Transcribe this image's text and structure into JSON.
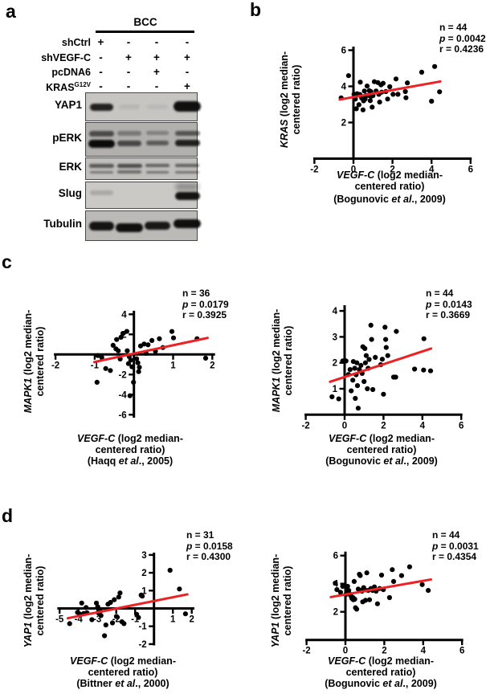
{
  "panels": {
    "a": "a",
    "b": "b",
    "c": "c",
    "d": "d"
  },
  "colors": {
    "trend": "#ed2024",
    "point": "#000000",
    "axis": "#000000"
  },
  "blot": {
    "header": "BCC",
    "conditions": [
      {
        "label": "shCtrl",
        "sup": "",
        "signs": [
          "+",
          "-",
          "-",
          "-"
        ]
      },
      {
        "label": "shVEGF-C",
        "sup": "",
        "signs": [
          "-",
          "+",
          "+",
          "+"
        ]
      },
      {
        "label": "pcDNA6",
        "sup": "",
        "signs": [
          "-",
          "-",
          "+",
          "-"
        ]
      },
      {
        "label": "KRAS",
        "sup": "G12V",
        "signs": [
          "-",
          "-",
          "-",
          "+"
        ]
      }
    ],
    "rows": [
      {
        "label": "YAP1",
        "bg": "#c7c5c2",
        "bands": [
          [
            [
              12.5,
              9,
              0.95,
              0.85
            ]
          ],
          [
            [
              14,
              6,
              0.85,
              0.07
            ]
          ],
          [
            [
              14,
              6,
              0.85,
              0.06
            ]
          ],
          [
            [
              9.5,
              13,
              1.08,
              0.95
            ]
          ]
        ]
      },
      {
        "label": "pERK",
        "bg": "#b2b0ad",
        "bands": [
          [
            [
              10,
              6.5,
              1,
              0.6
            ],
            [
              21,
              9.5,
              1.05,
              0.97
            ]
          ],
          [
            [
              10,
              5.5,
              0.95,
              0.33
            ],
            [
              22,
              7,
              0.95,
              0.62
            ]
          ],
          [
            [
              10,
              5,
              0.9,
              0.28
            ],
            [
              22,
              6,
              0.9,
              0.5
            ]
          ],
          [
            [
              10,
              6,
              1,
              0.55
            ],
            [
              21,
              8,
              1,
              0.85
            ]
          ]
        ]
      },
      {
        "label": "ERK",
        "bg": "#c1bfbc",
        "bands": [
          [
            [
              7,
              4.5,
              1,
              0.55
            ],
            [
              15.5,
              3.5,
              0.95,
              0.4
            ]
          ],
          [
            [
              6.5,
              5,
              1,
              0.62
            ],
            [
              15,
              4,
              0.95,
              0.45
            ]
          ],
          [
            [
              7,
              4,
              0.95,
              0.5
            ],
            [
              15.5,
              3.5,
              0.9,
              0.42
            ]
          ],
          [
            [
              7,
              4,
              0.95,
              0.5
            ],
            [
              15.5,
              3.5,
              0.95,
              0.42
            ]
          ]
        ]
      },
      {
        "label": "Slug",
        "bg": "#cbc9c6",
        "bands": [
          [
            [
              9.5,
              6,
              0.95,
              0.16
            ]
          ],
          [],
          [],
          [
            [
              12,
              10,
              1,
              0.93
            ],
            [
              1,
              9,
              0.95,
              0.3
            ]
          ]
        ]
      },
      {
        "label": "Tubulin",
        "bg": "#bcbab7",
        "bands": [
          [
            [
              13,
              11,
              1,
              0.92
            ]
          ],
          [
            [
              14.5,
              11,
              1.1,
              0.95
            ]
          ],
          [
            [
              12.5,
              10,
              1.05,
              0.9
            ]
          ],
          [
            [
              9.5,
              11.5,
              1.1,
              0.95
            ]
          ]
        ]
      }
    ]
  },
  "chart_data": [
    {
      "id": "b",
      "type": "scatter",
      "stats": {
        "n": "n = 44",
        "p_label": "p",
        "p_value": " = 0.0042",
        "r": "r = 0.4236"
      },
      "ylabel_gene": "KRAS",
      "ylabel_rest": " (log2 median-",
      "ylabel_line2": "centered ratio)",
      "xlabel_gene": "VEGF-C",
      "xlabel_rest": " (log2 median-",
      "xlabel_line2": "centered ratio)",
      "citation_pre": "(Bogunovic ",
      "citation_italic": "et al",
      "citation_post": "., 2009)",
      "xlim": [
        -2,
        6
      ],
      "ylim": [
        0,
        6
      ],
      "xticks": [
        -2,
        0,
        2,
        4,
        6
      ],
      "yticks": [
        2,
        4,
        6
      ],
      "trend": [
        [
          -0.7,
          3.27
        ],
        [
          4.45,
          4.27
        ]
      ],
      "points": [
        [
          -0.63,
          3.36
        ],
        [
          -0.25,
          4.59
        ],
        [
          0.03,
          3.56
        ],
        [
          0.1,
          3.3
        ],
        [
          0.15,
          2.76
        ],
        [
          0.19,
          3.59
        ],
        [
          0.28,
          2.98
        ],
        [
          0.33,
          3.55
        ],
        [
          0.35,
          4.23
        ],
        [
          0.42,
          3.36
        ],
        [
          0.49,
          2.7
        ],
        [
          0.52,
          3.2
        ],
        [
          0.56,
          3.74
        ],
        [
          0.6,
          3.3
        ],
        [
          0.64,
          3.49
        ],
        [
          0.7,
          4.02
        ],
        [
          0.77,
          3.5
        ],
        [
          0.81,
          3.76
        ],
        [
          0.86,
          3.21
        ],
        [
          0.89,
          3.71
        ],
        [
          0.9,
          3.45
        ],
        [
          0.96,
          2.85
        ],
        [
          1.0,
          3.49
        ],
        [
          1.07,
          4.26
        ],
        [
          1.16,
          3.74
        ],
        [
          1.25,
          4.21
        ],
        [
          1.3,
          3.56
        ],
        [
          1.34,
          3.13
        ],
        [
          1.41,
          4.08
        ],
        [
          1.45,
          3.68
        ],
        [
          1.52,
          4.17
        ],
        [
          1.66,
          3.71
        ],
        [
          1.75,
          3.3
        ],
        [
          1.86,
          3.98
        ],
        [
          2.03,
          3.56
        ],
        [
          2.18,
          4.41
        ],
        [
          2.28,
          3.56
        ],
        [
          2.66,
          3.71
        ],
        [
          2.69,
          3.37
        ],
        [
          2.76,
          4.19
        ],
        [
          3.5,
          4.78
        ],
        [
          4.0,
          3.18
        ],
        [
          4.16,
          5.1
        ],
        [
          4.41,
          3.7
        ]
      ]
    },
    {
      "id": "c_left",
      "type": "scatter",
      "stats": {
        "n": "n = 36",
        "p_label": "p",
        "p_value": " = 0.0179",
        "r": "r = 0.3925"
      },
      "ylabel_gene": "MAPK1",
      "ylabel_rest": " (log2 median-",
      "ylabel_line2": "centered ratio)",
      "xlabel_gene": "VEGF-C",
      "xlabel_rest": " (log2 median-",
      "xlabel_line2": "centered ratio)",
      "citation_pre": "(Haqq ",
      "citation_italic": "et al",
      "citation_post": "., 2005)",
      "xlim": [
        -2,
        2
      ],
      "ylim": [
        -6,
        4
      ],
      "xticks": [
        -2,
        -1,
        1,
        2
      ],
      "yticks": [
        -6,
        -4,
        -2,
        2,
        4
      ],
      "trend": [
        [
          -1.01,
          -0.75
        ],
        [
          1.88,
          1.65
        ]
      ],
      "points": [
        [
          -0.94,
          -2.77
        ],
        [
          -0.92,
          -0.11
        ],
        [
          -0.82,
          -0.29
        ],
        [
          -0.72,
          -1.4
        ],
        [
          -0.6,
          -1.6
        ],
        [
          -0.53,
          0.91
        ],
        [
          -0.46,
          0.56
        ],
        [
          -0.44,
          1.49
        ],
        [
          -0.4,
          0.37
        ],
        [
          -0.35,
          -0.45
        ],
        [
          -0.33,
          1.71
        ],
        [
          -0.28,
          2.1
        ],
        [
          -0.18,
          2.3
        ],
        [
          -0.17,
          0.37
        ],
        [
          -0.14,
          -0.91
        ],
        [
          -0.12,
          -0.21
        ],
        [
          -0.1,
          -4.11
        ],
        [
          -0.08,
          -0.56
        ],
        [
          -0.05,
          -1.23
        ],
        [
          -0.01,
          -2.77
        ],
        [
          0.07,
          -0.43
        ],
        [
          0.1,
          -0.83
        ],
        [
          0.12,
          -1.71
        ],
        [
          0.14,
          -1.28
        ],
        [
          0.17,
          0.85
        ],
        [
          0.26,
          1.04
        ],
        [
          0.31,
          0.11
        ],
        [
          0.36,
          0.96
        ],
        [
          0.46,
          1.39
        ],
        [
          0.55,
          0.32
        ],
        [
          0.65,
          1.57
        ],
        [
          0.74,
          0.69
        ],
        [
          0.97,
          2.29
        ],
        [
          1.01,
          1.65
        ],
        [
          1.61,
          1.57
        ],
        [
          1.83,
          -0.37
        ]
      ]
    },
    {
      "id": "c_right",
      "type": "scatter",
      "stats": {
        "n": "n = 44",
        "p_label": "p",
        "p_value": " = 0.0143",
        "r": "r = 0.3669"
      },
      "ylabel_gene": "MAPK1",
      "ylabel_rest": " (log2 median-",
      "ylabel_line2": "centered ratio)",
      "xlabel_gene": "VEGF-C",
      "xlabel_rest": " (log2 median-",
      "xlabel_line2": "centered ratio)",
      "citation_pre": "(Bogunovic ",
      "citation_italic": "et al",
      "citation_post": "., 2009)",
      "xlim": [
        -2,
        6
      ],
      "ylim": [
        0,
        4
      ],
      "xticks": [
        -2,
        0,
        2,
        4,
        6
      ],
      "yticks": [
        1,
        2,
        3,
        4
      ],
      "trend": [
        [
          -0.75,
          1.27
        ],
        [
          4.45,
          2.55
        ]
      ],
      "points": [
        [
          -0.65,
          0.69
        ],
        [
          -0.3,
          0.61
        ],
        [
          -0.1,
          2.07
        ],
        [
          0.07,
          2.07
        ],
        [
          0.2,
          1.55
        ],
        [
          0.28,
          1.74
        ],
        [
          0.34,
          0.92
        ],
        [
          0.42,
          1.33
        ],
        [
          0.45,
          2.05
        ],
        [
          0.52,
          1.79
        ],
        [
          0.55,
          0.63
        ],
        [
          0.59,
          1.54
        ],
        [
          0.63,
          2.0
        ],
        [
          0.66,
          1.12
        ],
        [
          0.7,
          0.25
        ],
        [
          0.76,
          1.74
        ],
        [
          0.84,
          1.9
        ],
        [
          0.9,
          1.59
        ],
        [
          0.94,
          2.62
        ],
        [
          1.0,
          1.28
        ],
        [
          1.04,
          2.55
        ],
        [
          1.07,
          2.0
        ],
        [
          1.11,
          2.28
        ],
        [
          1.17,
          1.0
        ],
        [
          1.21,
          1.79
        ],
        [
          1.26,
          2.13
        ],
        [
          1.35,
          3.45
        ],
        [
          1.39,
          2.9
        ],
        [
          1.45,
          0.97
        ],
        [
          1.58,
          2.21
        ],
        [
          1.86,
          1.93
        ],
        [
          1.94,
          2.14
        ],
        [
          2.0,
          0.79
        ],
        [
          2.08,
          3.37
        ],
        [
          2.11,
          2.9
        ],
        [
          2.14,
          2.59
        ],
        [
          2.22,
          2.28
        ],
        [
          2.52,
          1.45
        ],
        [
          2.63,
          1.45
        ],
        [
          2.66,
          3.21
        ],
        [
          3.6,
          1.76
        ],
        [
          4.06,
          1.72
        ],
        [
          4.08,
          2.93
        ],
        [
          4.42,
          1.69
        ]
      ]
    },
    {
      "id": "d_left",
      "type": "scatter",
      "stats": {
        "n": "n = 31",
        "p_label": "p",
        "p_value": " = 0.0158",
        "r": "r = 0.4300"
      },
      "ylabel_gene": "YAP1",
      "ylabel_rest": " (log2 median-",
      "ylabel_line2": "centered ratio)",
      "xlabel_gene": "VEGF-C",
      "xlabel_rest": " (log2 median-",
      "xlabel_line2": "centered ratio)",
      "citation_pre": "(Bittner ",
      "citation_italic": "et al",
      "citation_post": "., 2000)",
      "xlim": [
        -5,
        2
      ],
      "ylim": [
        -2,
        3
      ],
      "xticks": [
        -5,
        -4,
        -3,
        -2,
        -1,
        1,
        2
      ],
      "yticks": [
        -2,
        -1,
        1,
        2,
        3
      ],
      "trend": [
        [
          -4.57,
          -0.55
        ],
        [
          1.77,
          0.79
        ]
      ],
      "points": [
        [
          -4.47,
          -0.85
        ],
        [
          -4.05,
          -0.22
        ],
        [
          -3.95,
          -0.3
        ],
        [
          -3.83,
          0.3
        ],
        [
          -3.72,
          -0.28
        ],
        [
          -3.6,
          0.05
        ],
        [
          -3.55,
          -0.25
        ],
        [
          -3.29,
          -0.63
        ],
        [
          -3.05,
          0.3
        ],
        [
          -2.98,
          0.09
        ],
        [
          -2.95,
          -0.25
        ],
        [
          -2.84,
          -0.15
        ],
        [
          -2.81,
          -0.4
        ],
        [
          -2.62,
          -1.53
        ],
        [
          -2.55,
          -0.93
        ],
        [
          -2.44,
          0.24
        ],
        [
          -2.3,
          0.34
        ],
        [
          -2.2,
          -0.81
        ],
        [
          -2.1,
          0.49
        ],
        [
          -1.99,
          -0.45
        ],
        [
          -1.87,
          0.64
        ],
        [
          -1.8,
          0.87
        ],
        [
          -1.7,
          -0.75
        ],
        [
          -1.59,
          -0.85
        ],
        [
          -0.92,
          -0.33
        ],
        [
          -0.82,
          -0.51
        ],
        [
          -0.68,
          0.75
        ],
        [
          -0.62,
          0.69
        ],
        [
          0.85,
          2.14
        ],
        [
          1.35,
          1.09
        ],
        [
          1.67,
          -0.3
        ]
      ]
    },
    {
      "id": "d_right",
      "type": "scatter",
      "stats": {
        "n": "n = 44",
        "p_label": "p",
        "p_value": " = 0.0031",
        "r": "r = 0.4354"
      },
      "ylabel_gene": "YAP1",
      "ylabel_rest": " (log2 median-",
      "ylabel_line2": "centered ratio)",
      "xlabel_gene": "VEGF-C",
      "xlabel_rest": " (log2 median-",
      "xlabel_line2": "centered ratio)",
      "citation_pre": "(Bogunovic ",
      "citation_italic": "et al",
      "citation_post": "., 2009)",
      "xlim": [
        -2,
        6
      ],
      "ylim": [
        0,
        6
      ],
      "xticks": [
        -2,
        0,
        2,
        4,
        6
      ],
      "yticks": [
        2,
        4,
        6
      ],
      "trend": [
        [
          -0.75,
          3.05
        ],
        [
          4.4,
          4.3
        ]
      ],
      "points": [
        [
          -0.52,
          4.04
        ],
        [
          -0.44,
          3.58
        ],
        [
          -0.25,
          3.39
        ],
        [
          -0.14,
          3.81
        ],
        [
          0.03,
          3.24
        ],
        [
          0.11,
          3.81
        ],
        [
          0.17,
          3.52
        ],
        [
          0.21,
          3.28
        ],
        [
          0.25,
          3.2
        ],
        [
          0.3,
          3.09
        ],
        [
          0.34,
          2.95
        ],
        [
          0.39,
          3.01
        ],
        [
          0.41,
          2.86
        ],
        [
          0.45,
          4.16
        ],
        [
          0.48,
          2.9
        ],
        [
          0.52,
          2.29
        ],
        [
          0.58,
          2.19
        ],
        [
          0.66,
          3.62
        ],
        [
          0.72,
          4.67
        ],
        [
          0.76,
          4.58
        ],
        [
          0.8,
          3.52
        ],
        [
          0.85,
          3.47
        ],
        [
          0.89,
          2.71
        ],
        [
          0.94,
          3.72
        ],
        [
          0.99,
          3.58
        ],
        [
          1.03,
          2.82
        ],
        [
          1.1,
          4.77
        ],
        [
          1.17,
          3.52
        ],
        [
          1.24,
          2.86
        ],
        [
          1.31,
          3.66
        ],
        [
          1.4,
          3.52
        ],
        [
          1.49,
          3.77
        ],
        [
          1.58,
          3.47
        ],
        [
          1.65,
          2.57
        ],
        [
          1.76,
          3.66
        ],
        [
          1.86,
          4.61
        ],
        [
          1.95,
          3.58
        ],
        [
          2.27,
          3.01
        ],
        [
          2.41,
          5.0
        ],
        [
          2.48,
          4.16
        ],
        [
          2.89,
          4.58
        ],
        [
          3.3,
          5.2
        ],
        [
          3.95,
          3.94
        ],
        [
          4.26,
          3.52
        ]
      ]
    }
  ]
}
